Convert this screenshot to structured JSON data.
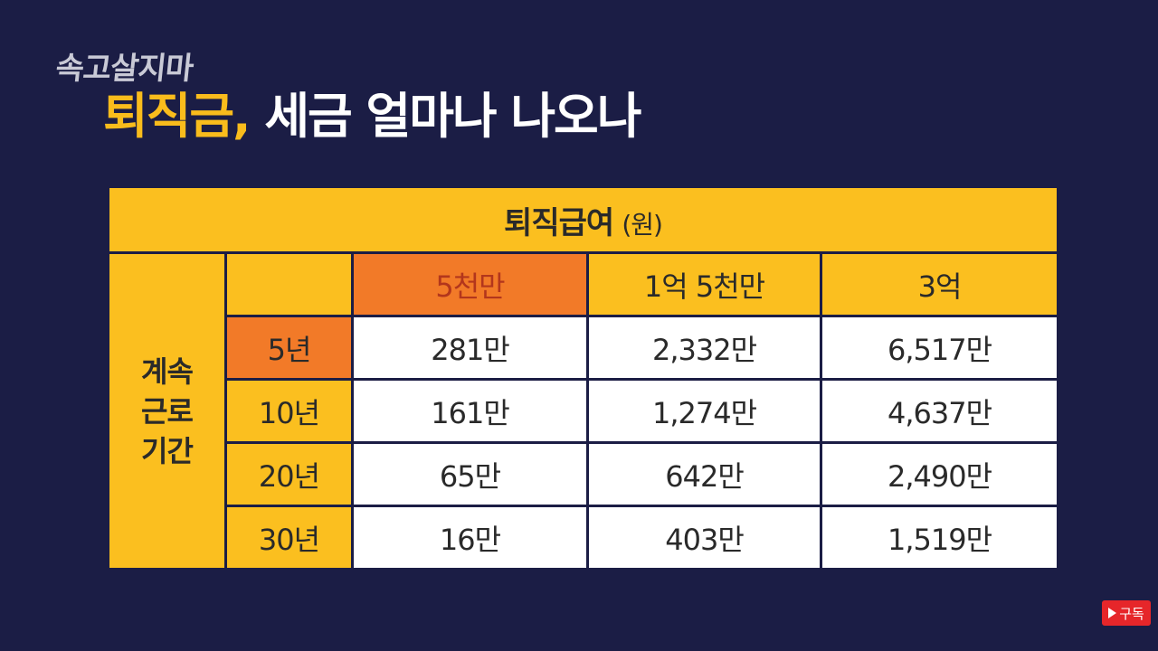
{
  "brand": "속고살지마",
  "title": {
    "highlight": "퇴직금,",
    "rest": " 세금 얼마나 나오나"
  },
  "table": {
    "header": "퇴직급여",
    "unit": "(원)",
    "side_label": [
      "계속",
      "근로",
      "기간"
    ],
    "columns": [
      "5천만",
      "1억 5천만",
      "3억"
    ],
    "rows": [
      {
        "period": "5년",
        "values": [
          "281만",
          "2,332만",
          "6,517만"
        ]
      },
      {
        "period": "10년",
        "values": [
          "161만",
          "1,274만",
          "4,637만"
        ]
      },
      {
        "period": "20년",
        "values": [
          "65만",
          "642만",
          "2,490만"
        ]
      },
      {
        "period": "30년",
        "values": [
          "16만",
          "403만",
          "1,519만"
        ]
      }
    ]
  },
  "subscribe": {
    "label": "구독",
    "icon": "play-icon",
    "color": "#e6262a"
  },
  "colors": {
    "background": "#1b1d45",
    "accent_yellow": "#fbbf1f",
    "accent_orange": "#f27a28"
  }
}
